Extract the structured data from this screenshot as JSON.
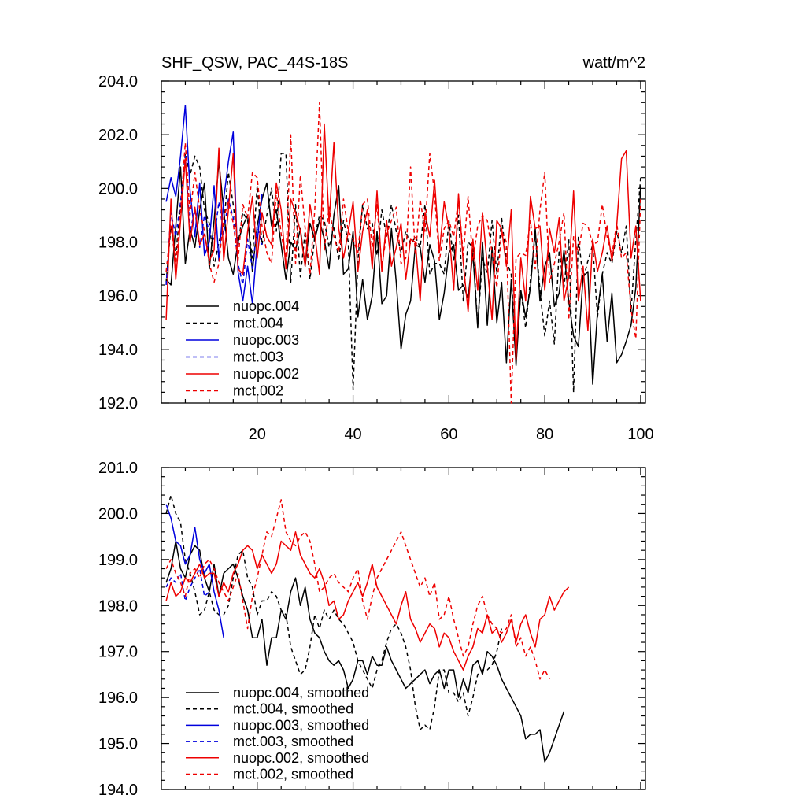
{
  "chart_data": [
    {
      "type": "line",
      "title": "SHF_QSW, PAC_44S-18S",
      "units": "watt/m^2",
      "xlim": [
        0,
        101
      ],
      "ylim": [
        192.0,
        204.0
      ],
      "yticks": [
        "192.0",
        "194.0",
        "196.0",
        "198.0",
        "200.0",
        "202.0",
        "204.0"
      ],
      "xticks": [
        "20",
        "40",
        "60",
        "80",
        "100"
      ],
      "legend_position": "bottom-left",
      "series": [
        {
          "name": "nuopc.004",
          "color": "#000000",
          "style": "solid",
          "x_start": 1,
          "values": [
            196.6,
            196.4,
            198.6,
            200.8,
            197.2,
            198.5,
            197.8,
            199.2,
            200.2,
            197.0,
            198.8,
            201.0,
            199.2,
            197.4,
            196.8,
            198.0,
            198.6,
            199.0,
            196.9,
            198.6,
            199.6,
            200.2,
            198.6,
            199.2,
            197.9,
            196.6,
            198.0,
            197.7,
            198.5,
            197.1,
            198.7,
            198.1,
            198.8,
            198.1,
            197.0,
            199.0,
            200.1,
            196.8,
            197.0,
            198.4,
            195.2,
            196.6,
            195.1,
            196.0,
            198.4,
            195.7,
            196.0,
            198.5,
            196.5,
            194.0,
            195.3,
            195.8,
            197.9,
            197.8,
            196.5,
            197.9,
            197.3,
            195.1,
            196.1,
            197.6,
            197.9,
            196.2,
            196.4,
            195.9,
            197.6,
            194.8,
            198.0,
            194.9,
            197.8,
            195.0,
            196.5,
            193.5,
            196.6,
            193.4,
            196.2,
            195.2,
            196.3,
            198.5,
            195.8,
            197.1,
            197.6,
            195.6,
            196.1,
            197.7,
            195.8,
            194.5,
            194.1,
            196.7,
            196.9,
            192.7,
            195.4,
            196.8,
            194.3,
            196.1,
            193.5,
            193.8,
            194.3,
            194.9,
            196.3,
            200.1
          ]
        },
        {
          "name": "mct.004",
          "color": "#000000",
          "style": "dash",
          "x_start": 1,
          "values": [
            196.5,
            198.6,
            197.5,
            199.4,
            201.3,
            200.5,
            201.2,
            200.8,
            199.2,
            198.7,
            197.1,
            198.0,
            198.6,
            200.6,
            199.4,
            197.9,
            199.1,
            198.8,
            197.4,
            200.1,
            197.9,
            199.0,
            200.0,
            198.4,
            201.3,
            201.3,
            196.5,
            199.4,
            196.7,
            198.4,
            196.6,
            198.2,
            199.0,
            198.8,
            197.8,
            198.6,
            197.3,
            198.8,
            198.0,
            192.5,
            197.3,
            199.4,
            198.5,
            198.7,
            197.5,
            199.2,
            198.2,
            199.4,
            198.4,
            197.6,
            198.4,
            197.9,
            198.2,
            197.8,
            199.4,
            196.8,
            197.2,
            197.2,
            196.8,
            198.8,
            197.3,
            199.0,
            195.8,
            198.0,
            197.8,
            194.9,
            197.4,
            196.8,
            198.8,
            196.8,
            198.9,
            197.3,
            196.8,
            193.7,
            196.2,
            194.8,
            196.6,
            198.3,
            196.2,
            194.5,
            195.8,
            194.2,
            197.7,
            196.3,
            198.1,
            192.4,
            198.2,
            196.6,
            197.3,
            197.9,
            195.2,
            196.8,
            197.6,
            197.2,
            198.4,
            197.6,
            198.6,
            195.4,
            198.1,
            200.4
          ]
        },
        {
          "name": "nuopc.003",
          "color": "#0000dd",
          "style": "solid",
          "x_start": 1,
          "values": [
            199.5,
            200.4,
            199.7,
            201.2,
            203.1,
            199.9,
            198.2,
            200.2,
            197.5,
            198.0,
            200.1,
            197.3,
            199.6,
            201.0,
            202.1,
            196.9,
            195.8,
            197.1,
            195.7,
            198.0,
            199.8
          ]
        },
        {
          "name": "mct.003",
          "color": "#0000dd",
          "style": "dash",
          "x_start": 1,
          "values": [
            196.4,
            199.1,
            198.2,
            199.5,
            201.2,
            198.4,
            199.2,
            197.8,
            199.0,
            198.4,
            198.1,
            199.5,
            198.3,
            199.6,
            198.9,
            197.2,
            196.4,
            198.1,
            197.0,
            198.6,
            197.9
          ]
        },
        {
          "name": "nuopc.002",
          "color": "#ee0000",
          "style": "solid",
          "x_start": 1,
          "values": [
            195.1,
            199.6,
            196.6,
            198.8,
            201.1,
            198.0,
            199.3,
            197.9,
            198.3,
            197.3,
            197.7,
            201.5,
            197.3,
            199.2,
            201.3,
            197.0,
            196.8,
            198.4,
            199.7,
            197.4,
            199.1,
            198.2,
            197.9,
            200.2,
            199.2,
            197.0,
            199.6,
            199.1,
            198.4,
            197.1,
            199.4,
            198.3,
            196.8,
            202.4,
            198.7,
            201.7,
            198.5,
            197.4,
            198.4,
            199.5,
            196.9,
            198.4,
            199.2,
            197.0,
            199.9,
            196.9,
            198.8,
            197.1,
            197.8,
            198.7,
            196.6,
            198.1,
            198.0,
            195.8,
            199.1,
            198.2,
            200.3,
            197.6,
            199.5,
            198.5,
            196.2,
            199.8,
            197.2,
            195.4,
            198.1,
            196.2,
            199.1,
            197.1,
            195.1,
            198.8,
            198.5,
            197.1,
            199.2,
            193.6,
            197.4,
            195.8,
            199.7,
            198.5,
            198.6,
            196.2,
            198.5,
            197.6,
            198.9,
            195.8,
            196.7,
            199.9,
            195.8,
            197.1,
            194.7,
            198.1,
            196.9,
            197.6,
            198.6,
            197.3,
            198.6,
            201.1,
            201.4,
            197.4,
            198.6,
            195.8
          ]
        },
        {
          "name": "mct.002",
          "color": "#ee0000",
          "style": "dash",
          "x_start": 1,
          "values": [
            196.9,
            198.6,
            197.2,
            199.1,
            201.7,
            199.0,
            200.6,
            199.2,
            198.4,
            197.2,
            196.5,
            197.2,
            198.9,
            199.5,
            198.7,
            197.3,
            199.4,
            198.9,
            200.6,
            200.4,
            198.6,
            197.6,
            197.2,
            199.9,
            198.3,
            197.4,
            202.0,
            197.2,
            200.5,
            198.5,
            196.8,
            199.2,
            203.2,
            197.7,
            199.3,
            198.2,
            197.6,
            199.6,
            198.4,
            198.1,
            197.6,
            199.4,
            199.6,
            197.8,
            199.4,
            197.1,
            198.3,
            198.8,
            199.3,
            197.2,
            197.4,
            200.8,
            197.5,
            199.6,
            198.4,
            201.3,
            199.8,
            197.3,
            198.5,
            198.8,
            198.2,
            199.6,
            197.5,
            199.7,
            197.3,
            198.6,
            199.0,
            198.8,
            197.6,
            196.3,
            198.4,
            198.0,
            192.0,
            197.4,
            197.6,
            197.5,
            198.8,
            197.0,
            199.2,
            200.6,
            196.5,
            197.2,
            198.0,
            199.1,
            195.1,
            198.2,
            197.6,
            198.7,
            198.6,
            197.9,
            198.0,
            199.4,
            198.2,
            197.5,
            198.7,
            197.4,
            197.6,
            195.5,
            194.4,
            199.6
          ]
        }
      ]
    },
    {
      "type": "line",
      "title": "",
      "xlim": [
        0,
        101
      ],
      "ylim": [
        194.0,
        201.0
      ],
      "yticks": [
        "194.0",
        "195.0",
        "196.0",
        "197.0",
        "198.0",
        "199.0",
        "200.0",
        "201.0"
      ],
      "legend_position": "bottom-left",
      "series": [
        {
          "name": "nuopc.004, smoothed",
          "color": "#000000",
          "style": "solid",
          "x_start": 1,
          "values": [
            198.5,
            198.8,
            199.4,
            198.8,
            198.6,
            199.1,
            199.3,
            199.2,
            198.6,
            198.3,
            198.9,
            198.2,
            198.7,
            198.8,
            198.9,
            198.6,
            198.2,
            197.9,
            197.3,
            197.3,
            197.7,
            196.7,
            197.3,
            197.3,
            197.9,
            197.7,
            198.3,
            198.6,
            198.0,
            198.4,
            197.7,
            197.4,
            197.3,
            197.0,
            196.8,
            196.7,
            196.8,
            196.6,
            196.2,
            196.4,
            196.8,
            196.8,
            196.5,
            196.9,
            196.7,
            196.7,
            197.1,
            196.8,
            196.6,
            196.4,
            196.2,
            196.3,
            196.4,
            196.5,
            196.6,
            196.3,
            196.5,
            196.6,
            196.2,
            196.6,
            196.6,
            196.0,
            196.4,
            196.1,
            196.7,
            196.8,
            196.5,
            197.0,
            196.9,
            196.7,
            196.4,
            196.2,
            196.0,
            195.8,
            195.6,
            195.1,
            195.2,
            195.2,
            195.3,
            194.6,
            194.8,
            195.1,
            195.4,
            195.7
          ]
        },
        {
          "name": "mct.004, smoothed",
          "color": "#000000",
          "style": "dash",
          "x_start": 1,
          "values": [
            200.0,
            200.4,
            200.0,
            199.8,
            199.0,
            198.7,
            198.3,
            197.8,
            197.9,
            198.3,
            197.9,
            197.8,
            197.8,
            198.0,
            198.6,
            199.1,
            199.2,
            198.6,
            198.4,
            197.8,
            198.1,
            198.1,
            198.3,
            198.2,
            197.9,
            197.8,
            197.1,
            196.8,
            196.5,
            196.6,
            197.1,
            197.8,
            197.5,
            197.9,
            197.7,
            197.9,
            197.7,
            197.6,
            197.4,
            197.2,
            196.8,
            196.6,
            196.4,
            196.2,
            196.6,
            196.8,
            197.2,
            197.5,
            197.6,
            197.4,
            197.1,
            196.6,
            195.8,
            195.3,
            195.4,
            195.3,
            195.8,
            196.6,
            196.6,
            196.1,
            196.1,
            195.9,
            196.1,
            195.6,
            196.0,
            196.5,
            196.6,
            196.6,
            196.7,
            197.0,
            197.5
          ]
        },
        {
          "name": "nuopc.003, smoothed",
          "color": "#0000dd",
          "style": "solid",
          "x_start": 1,
          "values": [
            200.2,
            199.9,
            199.4,
            199.3,
            198.9,
            199.1,
            199.7,
            199.0,
            198.7,
            198.9,
            198.3,
            197.9,
            197.3
          ]
        },
        {
          "name": "mct.003, smoothed",
          "color": "#0000dd",
          "style": "dash",
          "x_start": 1,
          "values": [
            198.4,
            198.6,
            198.5,
            198.7,
            198.1,
            198.4,
            198.6,
            198.8,
            198.2,
            198.3
          ]
        },
        {
          "name": "nuopc.002, smoothed",
          "color": "#ee0000",
          "style": "solid",
          "x_start": 1,
          "values": [
            198.1,
            198.5,
            198.2,
            198.3,
            198.6,
            198.5,
            198.7,
            198.9,
            198.6,
            198.7,
            198.7,
            198.2,
            198.5,
            198.3,
            198.7,
            198.9,
            199.2,
            199.3,
            199.2,
            198.8,
            199.1,
            198.9,
            198.7,
            198.9,
            199.4,
            199.3,
            199.2,
            199.6,
            199.1,
            198.9,
            198.7,
            198.6,
            198.8,
            198.5,
            198.0,
            198.1,
            197.7,
            197.8,
            198.1,
            198.3,
            198.5,
            198.2,
            198.5,
            198.9,
            198.4,
            198.2,
            198.0,
            197.8,
            197.6,
            198.0,
            198.3,
            197.7,
            197.5,
            197.2,
            197.4,
            197.6,
            197.5,
            197.1,
            197.4,
            197.3,
            197.0,
            196.8,
            196.6,
            196.9,
            197.1,
            197.5,
            197.4,
            197.8,
            197.4,
            197.5,
            197.2,
            197.4,
            197.7,
            197.2,
            197.6,
            197.8,
            197.4,
            197.1,
            197.7,
            197.8,
            198.2,
            197.9,
            198.1,
            198.3,
            198.4
          ]
        },
        {
          "name": "mct.002, smoothed",
          "color": "#ee0000",
          "style": "dash",
          "x_start": 1,
          "values": [
            198.8,
            199.0,
            198.7,
            198.5,
            198.2,
            198.7,
            198.8,
            198.6,
            198.9,
            199.0,
            198.8,
            198.5,
            198.3,
            198.1,
            198.4,
            198.7,
            198.1,
            197.5,
            198.2,
            198.6,
            199.1,
            199.6,
            199.5,
            199.9,
            200.3,
            199.6,
            199.4,
            199.3,
            199.5,
            199.6,
            199.4,
            198.9,
            198.3,
            198.4,
            198.6,
            198.7,
            198.5,
            198.4,
            198.3,
            198.6,
            198.8,
            198.1,
            197.7,
            198.2,
            198.6,
            198.8,
            199.0,
            199.2,
            199.4,
            199.6,
            199.3,
            199.0,
            198.7,
            198.4,
            198.6,
            198.2,
            198.5,
            197.7,
            197.8,
            198.2,
            197.7,
            197.3,
            196.9,
            197.1,
            197.6,
            198.0,
            198.2,
            197.8,
            197.6,
            197.5,
            197.4,
            197.5,
            197.8,
            197.1,
            197.3,
            196.9,
            197.1,
            196.8,
            196.4,
            196.6,
            196.4
          ]
        }
      ]
    }
  ]
}
